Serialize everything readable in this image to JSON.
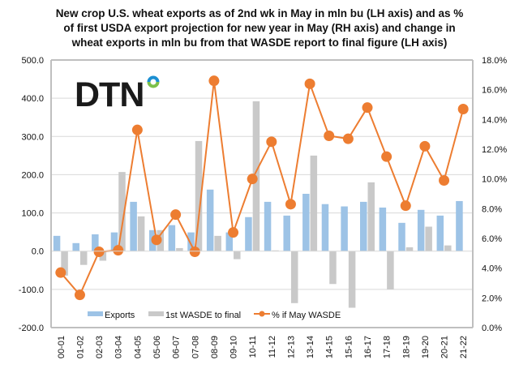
{
  "chart_data": {
    "type": "bar",
    "title_lines": [
      "New crop U.S. wheat exports as of 2nd wk in May in mln bu (LH axis) and as  %",
      "of first USDA export projection for new year in May (RH axis) and change in",
      "wheat exports in mln bu from that WASDE report to final figure (LH axis)"
    ],
    "xlabel": "",
    "ylabel": "",
    "y2label": "",
    "categories": [
      "00-01",
      "01-02",
      "02-03",
      "03-04",
      "04-05",
      "05-06",
      "06-07",
      "07-08",
      "08-09",
      "09-10",
      "10-11",
      "11-12",
      "12-13",
      "13-14",
      "14-15",
      "15-16",
      "16-17",
      "17-18",
      "18-19",
      "19-20",
      "20-21",
      "21-22"
    ],
    "ylim": [
      -200,
      500
    ],
    "yticks": [
      "500.0",
      "400.0",
      "300.0",
      "200.0",
      "100.0",
      "0.0",
      "-100.0",
      "-200.0"
    ],
    "y2lim": [
      0,
      18
    ],
    "y2ticks": [
      "18.0%",
      "16.0%",
      "14.0%",
      "12.0%",
      "10.0%",
      "8.0%",
      "6.0%",
      "4.0%",
      "2.0%",
      "0.0%"
    ],
    "grid": true,
    "legend_position": "bottom-inside",
    "series": [
      {
        "name": "Exports",
        "type": "bar",
        "axis": "left",
        "color": "#9dc3e6",
        "values": [
          40,
          21,
          44,
          49,
          129,
          55,
          68,
          49,
          161,
          49,
          89,
          129,
          93,
          150,
          123,
          117,
          129,
          114,
          74,
          108,
          93,
          131
        ]
      },
      {
        "name": "1st WASDE to final",
        "type": "bar",
        "axis": "left",
        "color": "#c9c9c9",
        "values": [
          -64,
          -36,
          -25,
          207,
          91,
          55,
          8,
          288,
          40,
          -21,
          392,
          2,
          -136,
          250,
          -86,
          -148,
          180,
          -100,
          10,
          64,
          15,
          null
        ]
      },
      {
        "name": "% if May WASDE",
        "type": "line",
        "axis": "right",
        "color": "#ed7d31",
        "values": [
          3.7,
          2.2,
          5.1,
          5.2,
          13.3,
          5.9,
          7.6,
          5.1,
          16.6,
          6.4,
          10.0,
          12.5,
          8.3,
          16.4,
          12.9,
          12.7,
          14.8,
          11.5,
          8.2,
          12.2,
          9.9,
          14.7
        ]
      }
    ]
  },
  "logo": {
    "text": "DTN",
    "ring_colors": [
      "#1b8fd2",
      "#7cc04b"
    ]
  }
}
